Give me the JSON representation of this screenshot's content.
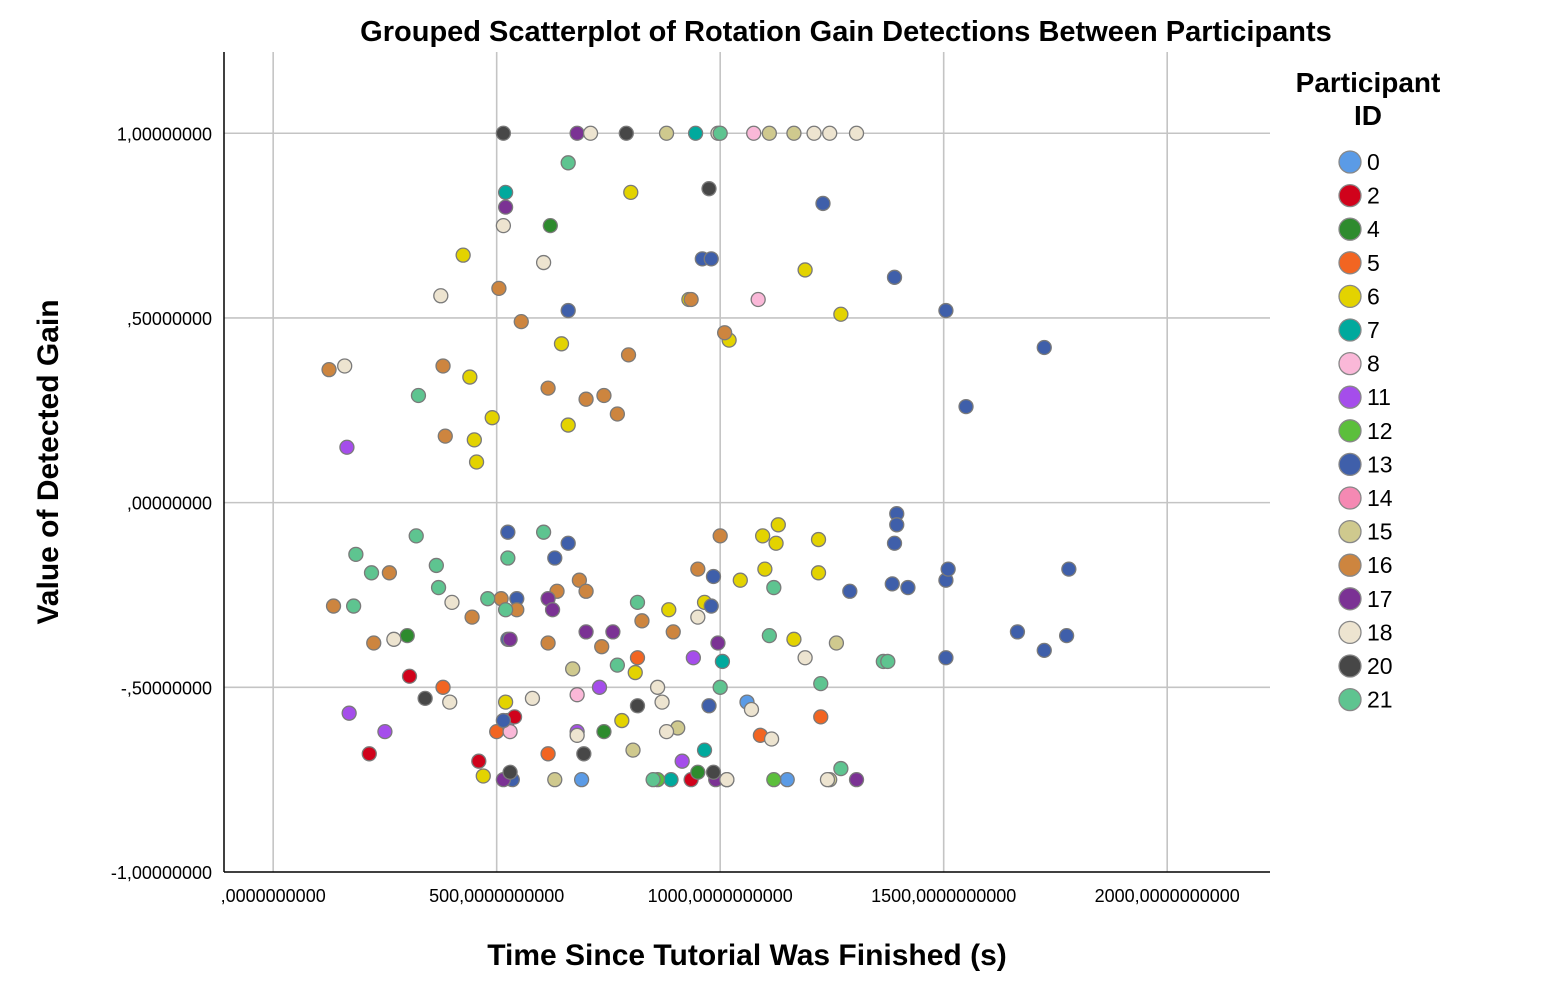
{
  "chart_data": {
    "type": "scatter",
    "title": "Grouped Scatterplot of Rotation Gain Detections Between Participants",
    "xlabel": "Time Since Tutorial Was Finished (s)",
    "ylabel": "Value of Detected Gain",
    "xlim": [
      -110,
      2230
    ],
    "ylim": [
      -1.0,
      1.22
    ],
    "x_ticks": [
      0,
      500,
      1000,
      1500,
      2000
    ],
    "x_tick_labels": [
      ",0000000000",
      "500,0000000000",
      "1000,0000000000",
      "1500,0000000000",
      "2000,0000000000"
    ],
    "y_ticks": [
      -1.0,
      -0.5,
      0.0,
      0.5,
      1.0
    ],
    "y_tick_labels": [
      "-1,00000000",
      "-,50000000",
      ",00000000",
      ",50000000",
      "1,00000000"
    ],
    "grid": true,
    "legend": {
      "title": "Participant ID",
      "position": "right"
    },
    "series": [
      {
        "name": "0",
        "color": "#5B9BE6",
        "points": [
          [
            690,
            -0.75
          ],
          [
            1150,
            -0.75
          ],
          [
            1060,
            -0.54
          ],
          [
            525,
            -0.59
          ]
        ]
      },
      {
        "name": "2",
        "color": "#D0021B",
        "points": [
          [
            215,
            -0.68
          ],
          [
            305,
            -0.47
          ],
          [
            460,
            -0.7
          ],
          [
            540,
            -0.58
          ],
          [
            935,
            -0.75
          ]
        ]
      },
      {
        "name": "4",
        "color": "#2E8B2E",
        "points": [
          [
            300,
            -0.36
          ],
          [
            620,
            0.75
          ],
          [
            740,
            -0.62
          ],
          [
            950,
            -0.73
          ]
        ]
      },
      {
        "name": "5",
        "color": "#F26522",
        "points": [
          [
            380,
            -0.5
          ],
          [
            500,
            -0.62
          ],
          [
            615,
            -0.68
          ],
          [
            815,
            -0.42
          ],
          [
            1090,
            -0.63
          ],
          [
            1225,
            -0.58
          ]
        ]
      },
      {
        "name": "6",
        "color": "#E3D300",
        "points": [
          [
            425,
            0.67
          ],
          [
            645,
            0.43
          ],
          [
            660,
            0.21
          ],
          [
            440,
            0.34
          ],
          [
            450,
            0.17
          ],
          [
            455,
            0.11
          ],
          [
            490,
            0.23
          ],
          [
            800,
            0.84
          ],
          [
            930,
            0.55
          ],
          [
            1020,
            0.44
          ],
          [
            1190,
            0.63
          ],
          [
            1270,
            0.51
          ],
          [
            1130,
            -0.06
          ],
          [
            1095,
            -0.09
          ],
          [
            1125,
            -0.11
          ],
          [
            1045,
            -0.21
          ],
          [
            1220,
            -0.19
          ],
          [
            1220,
            -0.1
          ],
          [
            1100,
            -0.18
          ],
          [
            965,
            -0.27
          ],
          [
            885,
            -0.29
          ],
          [
            810,
            -0.46
          ],
          [
            1165,
            -0.37
          ],
          [
            780,
            -0.59
          ],
          [
            520,
            -0.54
          ],
          [
            470,
            -0.74
          ]
        ]
      },
      {
        "name": "7",
        "color": "#00A99D",
        "points": [
          [
            520,
            0.84
          ],
          [
            945,
            1.0
          ],
          [
            1005,
            -0.43
          ],
          [
            965,
            -0.67
          ],
          [
            890,
            -0.75
          ]
        ]
      },
      {
        "name": "8",
        "color": "#FAB8D8",
        "points": [
          [
            1085,
            0.55
          ],
          [
            1075,
            1.0
          ],
          [
            680,
            -0.52
          ],
          [
            530,
            -0.62
          ]
        ]
      },
      {
        "name": "11",
        "color": "#A54DEB",
        "points": [
          [
            165,
            0.15
          ],
          [
            170,
            -0.57
          ],
          [
            250,
            -0.62
          ],
          [
            730,
            -0.5
          ],
          [
            940,
            -0.42
          ],
          [
            915,
            -0.7
          ],
          [
            680,
            -0.62
          ]
        ]
      },
      {
        "name": "12",
        "color": "#5CBF3C",
        "points": [
          [
            860,
            -0.75
          ],
          [
            1120,
            -0.75
          ]
        ]
      },
      {
        "name": "13",
        "color": "#3F5FAA",
        "points": [
          [
            1230,
            0.81
          ],
          [
            960,
            0.66
          ],
          [
            980,
            0.66
          ],
          [
            660,
            0.52
          ],
          [
            1390,
            0.61
          ],
          [
            1505,
            0.52
          ],
          [
            1725,
            0.42
          ],
          [
            1550,
            0.26
          ],
          [
            1395,
            -0.03
          ],
          [
            1395,
            -0.06
          ],
          [
            1390,
            -0.11
          ],
          [
            525,
            -0.08
          ],
          [
            630,
            -0.15
          ],
          [
            660,
            -0.11
          ],
          [
            985,
            -0.2
          ],
          [
            980,
            -0.28
          ],
          [
            1290,
            -0.24
          ],
          [
            1385,
            -0.22
          ],
          [
            1420,
            -0.23
          ],
          [
            1505,
            -0.21
          ],
          [
            1510,
            -0.18
          ],
          [
            1780,
            -0.18
          ],
          [
            1665,
            -0.35
          ],
          [
            1775,
            -0.36
          ],
          [
            1725,
            -0.4
          ],
          [
            1505,
            -0.42
          ],
          [
            975,
            -0.55
          ],
          [
            545,
            -0.26
          ],
          [
            525,
            -0.37
          ],
          [
            515,
            -0.59
          ],
          [
            535,
            -0.75
          ]
        ]
      },
      {
        "name": "14",
        "color": "#F589B3",
        "points": [
          [
            1015,
            -0.75
          ]
        ]
      },
      {
        "name": "15",
        "color": "#CFC98E",
        "points": [
          [
            880,
            1.0
          ],
          [
            1110,
            1.0
          ],
          [
            1165,
            1.0
          ],
          [
            630,
            -0.75
          ],
          [
            670,
            -0.45
          ],
          [
            805,
            -0.67
          ],
          [
            905,
            -0.61
          ],
          [
            1245,
            -0.75
          ],
          [
            1260,
            -0.38
          ]
        ]
      },
      {
        "name": "16",
        "color": "#CD853F",
        "points": [
          [
            125,
            0.36
          ],
          [
            380,
            0.37
          ],
          [
            385,
            0.18
          ],
          [
            505,
            0.58
          ],
          [
            555,
            0.49
          ],
          [
            615,
            0.31
          ],
          [
            700,
            0.28
          ],
          [
            740,
            0.29
          ],
          [
            770,
            0.24
          ],
          [
            795,
            0.4
          ],
          [
            1010,
            0.46
          ],
          [
            935,
            0.55
          ],
          [
            1000,
            -0.09
          ],
          [
            135,
            -0.28
          ],
          [
            260,
            -0.19
          ],
          [
            225,
            -0.38
          ],
          [
            445,
            -0.31
          ],
          [
            510,
            -0.26
          ],
          [
            545,
            -0.29
          ],
          [
            615,
            -0.38
          ],
          [
            635,
            -0.24
          ],
          [
            685,
            -0.21
          ],
          [
            700,
            -0.24
          ],
          [
            735,
            -0.39
          ],
          [
            825,
            -0.32
          ],
          [
            895,
            -0.35
          ],
          [
            950,
            -0.18
          ]
        ]
      },
      {
        "name": "17",
        "color": "#7B3294",
        "points": [
          [
            520,
            0.8
          ],
          [
            680,
            1.0
          ],
          [
            615,
            -0.26
          ],
          [
            625,
            -0.29
          ],
          [
            700,
            -0.35
          ],
          [
            760,
            -0.35
          ],
          [
            995,
            -0.38
          ],
          [
            515,
            -0.75
          ],
          [
            990,
            -0.75
          ],
          [
            1305,
            -0.75
          ],
          [
            530,
            -0.37
          ]
        ]
      },
      {
        "name": "18",
        "color": "#EDE4D0",
        "points": [
          [
            160,
            0.37
          ],
          [
            375,
            0.56
          ],
          [
            515,
            0.75
          ],
          [
            605,
            0.65
          ],
          [
            710,
            1.0
          ],
          [
            995,
            1.0
          ],
          [
            1210,
            1.0
          ],
          [
            1245,
            1.0
          ],
          [
            1305,
            1.0
          ],
          [
            270,
            -0.37
          ],
          [
            400,
            -0.27
          ],
          [
            395,
            -0.54
          ],
          [
            580,
            -0.53
          ],
          [
            680,
            -0.63
          ],
          [
            860,
            -0.5
          ],
          [
            870,
            -0.54
          ],
          [
            880,
            -0.62
          ],
          [
            950,
            -0.31
          ],
          [
            1070,
            -0.56
          ],
          [
            1115,
            -0.64
          ],
          [
            1190,
            -0.42
          ],
          [
            1240,
            -0.75
          ],
          [
            1015,
            -0.75
          ]
        ]
      },
      {
        "name": "20",
        "color": "#474747",
        "points": [
          [
            515,
            1.0
          ],
          [
            790,
            1.0
          ],
          [
            975,
            0.85
          ],
          [
            340,
            -0.53
          ],
          [
            530,
            -0.73
          ],
          [
            695,
            -0.68
          ],
          [
            815,
            -0.55
          ],
          [
            985,
            -0.73
          ]
        ]
      },
      {
        "name": "21",
        "color": "#5EC490",
        "points": [
          [
            660,
            0.92
          ],
          [
            325,
            0.29
          ],
          [
            320,
            -0.09
          ],
          [
            185,
            -0.14
          ],
          [
            180,
            -0.28
          ],
          [
            220,
            -0.19
          ],
          [
            365,
            -0.17
          ],
          [
            370,
            -0.23
          ],
          [
            480,
            -0.26
          ],
          [
            520,
            -0.29
          ],
          [
            525,
            -0.15
          ],
          [
            605,
            -0.08
          ],
          [
            815,
            -0.27
          ],
          [
            1120,
            -0.23
          ],
          [
            1000,
            -0.5
          ],
          [
            770,
            -0.44
          ],
          [
            1110,
            -0.36
          ],
          [
            1225,
            -0.49
          ],
          [
            1270,
            -0.72
          ],
          [
            1365,
            -0.43
          ],
          [
            1375,
            -0.43
          ],
          [
            850,
            -0.75
          ],
          [
            1000,
            1.0
          ]
        ]
      }
    ]
  }
}
